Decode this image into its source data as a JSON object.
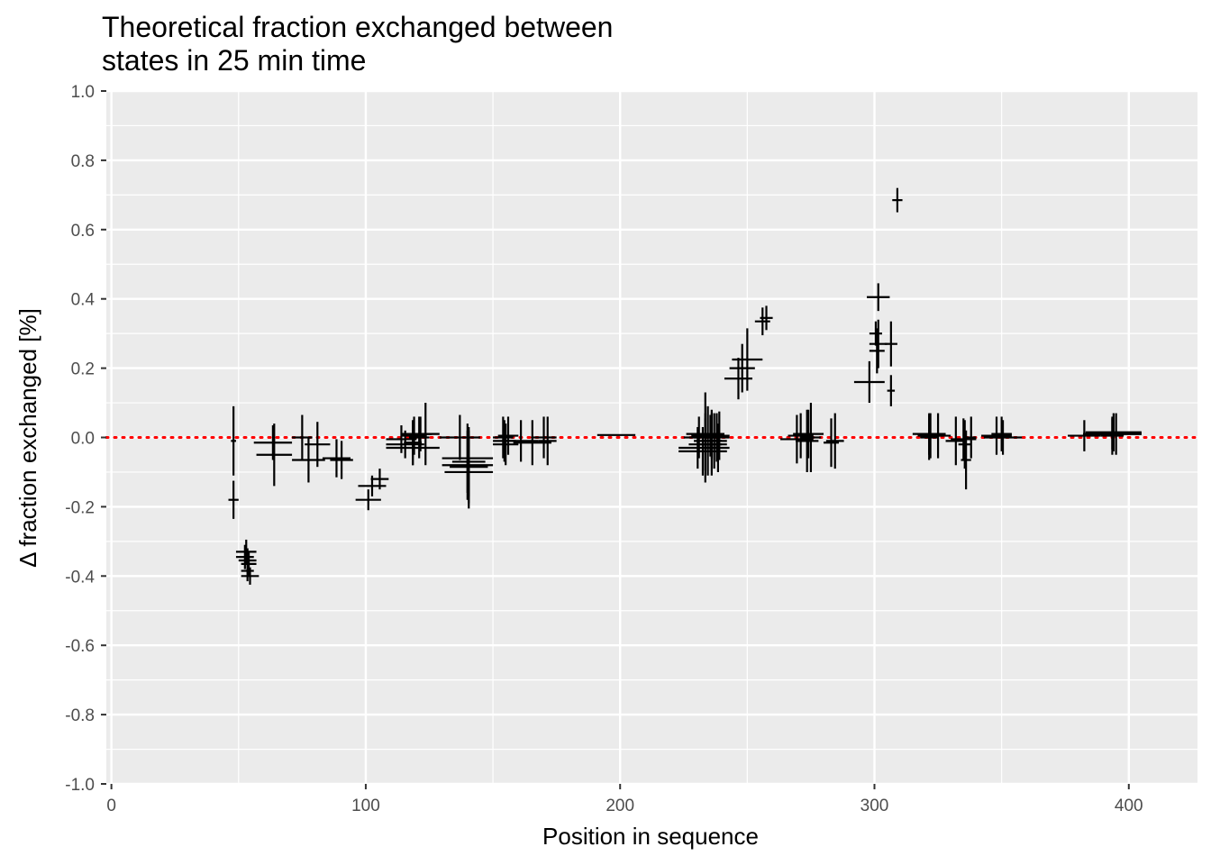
{
  "chart_data": {
    "type": "scatter",
    "title_lines": [
      "Theoretical fraction exchanged between",
      "states in 25 min time"
    ],
    "xlabel": "Position in sequence",
    "ylabel": "Δ fraction exchanged [%]",
    "xlim": [
      -2,
      427
    ],
    "ylim": [
      -1.0,
      1.0
    ],
    "x_ticks": [
      0,
      100,
      200,
      300,
      400
    ],
    "x_tick_labels": [
      "0",
      "100",
      "200",
      "300",
      "400"
    ],
    "y_ticks": [
      -1.0,
      -0.8,
      -0.6,
      -0.4,
      -0.2,
      0.0,
      0.2,
      0.4,
      0.6,
      0.8,
      1.0
    ],
    "y_tick_labels": [
      "-1.0",
      "-0.8",
      "-0.6",
      "-0.4",
      "-0.2",
      "0.0",
      "0.2",
      "0.4",
      "0.6",
      "0.8",
      "1.0"
    ],
    "grid": true,
    "colors": {
      "panel": "#ebebeb",
      "grid": "#ffffff",
      "mark": "#000000",
      "reference_line": "#ff0000"
    },
    "reference_line": {
      "y": 0.0,
      "style": "dotted"
    },
    "series": [
      {
        "mark": "crossbar",
        "points": [
          {
            "start": 47,
            "end": 49,
            "value": -0.01,
            "err": 0.1
          },
          {
            "start": 46,
            "end": 50,
            "value": -0.18,
            "err": 0.055
          },
          {
            "start": 49,
            "end": 57,
            "value": -0.33,
            "err": 0.035
          },
          {
            "start": 49,
            "end": 56,
            "value": -0.345,
            "err": 0.035
          },
          {
            "start": 50,
            "end": 57,
            "value": -0.355,
            "err": 0.035
          },
          {
            "start": 51,
            "end": 57,
            "value": -0.365,
            "err": 0.035
          },
          {
            "start": 51,
            "end": 56,
            "value": -0.385,
            "err": 0.03
          },
          {
            "start": 51,
            "end": 58,
            "value": -0.4,
            "err": 0.025
          },
          {
            "start": 56,
            "end": 71,
            "value": -0.015,
            "err": 0.05
          },
          {
            "start": 57,
            "end": 71,
            "value": -0.05,
            "err": 0.09
          },
          {
            "start": 71,
            "end": 79,
            "value": 0.0,
            "err": 0.065
          },
          {
            "start": 71,
            "end": 84,
            "value": -0.065,
            "err": 0.065
          },
          {
            "start": 76,
            "end": 86,
            "value": -0.02,
            "err": 0.065
          },
          {
            "start": 83,
            "end": 94,
            "value": -0.06,
            "err": 0.055
          },
          {
            "start": 86,
            "end": 95,
            "value": -0.065,
            "err": 0.055
          },
          {
            "start": 96,
            "end": 106,
            "value": -0.18,
            "err": 0.03
          },
          {
            "start": 97,
            "end": 108,
            "value": -0.14,
            "err": 0.03
          },
          {
            "start": 102,
            "end": 109,
            "value": -0.12,
            "err": 0.03
          },
          {
            "start": 108,
            "end": 120,
            "value": -0.005,
            "err": 0.04
          },
          {
            "start": 108,
            "end": 123,
            "value": -0.02,
            "err": 0.04
          },
          {
            "start": 108,
            "end": 129,
            "value": -0.03,
            "err": 0.05
          },
          {
            "start": 114,
            "end": 124,
            "value": 0.005,
            "err": 0.055
          },
          {
            "start": 114,
            "end": 129,
            "value": 0.01,
            "err": 0.05
          },
          {
            "start": 115,
            "end": 122,
            "value": -0.015,
            "err": 0.065
          },
          {
            "start": 117,
            "end": 125,
            "value": 0.0,
            "err": 0.06
          },
          {
            "start": 121,
            "end": 126,
            "value": 0.01,
            "err": 0.09
          },
          {
            "start": 129,
            "end": 145,
            "value": 0.0,
            "err": 0.065
          },
          {
            "start": 130,
            "end": 150,
            "value": -0.06,
            "err": 0.1
          },
          {
            "start": 130,
            "end": 150,
            "value": -0.08,
            "err": 0.1
          },
          {
            "start": 131,
            "end": 150,
            "value": -0.1,
            "err": 0.105
          },
          {
            "start": 133,
            "end": 148,
            "value": -0.085,
            "err": 0.105
          },
          {
            "start": 134,
            "end": 147,
            "value": -0.07,
            "err": 0.1
          },
          {
            "start": 150,
            "end": 158,
            "value": 0.0,
            "err": 0.06
          },
          {
            "start": 150,
            "end": 159,
            "value": -0.01,
            "err": 0.06
          },
          {
            "start": 150,
            "end": 160,
            "value": -0.02,
            "err": 0.06
          },
          {
            "start": 152,
            "end": 160,
            "value": 0.005,
            "err": 0.055
          },
          {
            "start": 154,
            "end": 168,
            "value": -0.01,
            "err": 0.06
          },
          {
            "start": 158,
            "end": 173,
            "value": -0.015,
            "err": 0.065
          },
          {
            "start": 165,
            "end": 175,
            "value": 0.0,
            "err": 0.06
          },
          {
            "start": 168,
            "end": 175,
            "value": -0.01,
            "err": 0.07
          },
          {
            "start": 191,
            "end": 206,
            "value": 0.007,
            "err": 0.0
          },
          {
            "start": 223,
            "end": 238,
            "value": -0.03,
            "err": 0.06
          },
          {
            "start": 223,
            "end": 242,
            "value": -0.04,
            "err": 0.07
          },
          {
            "start": 225,
            "end": 237,
            "value": 0.0,
            "err": 0.06
          },
          {
            "start": 226,
            "end": 241,
            "value": 0.01,
            "err": 0.06
          },
          {
            "start": 227,
            "end": 240,
            "value": -0.02,
            "err": 0.075
          },
          {
            "start": 228,
            "end": 243,
            "value": 0.005,
            "err": 0.06
          },
          {
            "start": 229,
            "end": 240,
            "value": -0.01,
            "err": 0.1
          },
          {
            "start": 229,
            "end": 238,
            "value": 0.0,
            "err": 0.13
          },
          {
            "start": 230,
            "end": 242,
            "value": -0.02,
            "err": 0.09
          },
          {
            "start": 231,
            "end": 241,
            "value": 0.01,
            "err": 0.07
          },
          {
            "start": 232,
            "end": 242,
            "value": -0.01,
            "err": 0.08
          },
          {
            "start": 233,
            "end": 243,
            "value": 0.0,
            "err": 0.07
          },
          {
            "start": 234,
            "end": 243,
            "value": -0.03,
            "err": 0.07
          },
          {
            "start": 235,
            "end": 243,
            "value": 0.005,
            "err": 0.07
          },
          {
            "start": 241,
            "end": 252,
            "value": 0.17,
            "err": 0.06
          },
          {
            "start": 243,
            "end": 253,
            "value": 0.2,
            "err": 0.07
          },
          {
            "start": 244,
            "end": 256,
            "value": 0.225,
            "err": 0.09
          },
          {
            "start": 253,
            "end": 259,
            "value": 0.335,
            "err": 0.04
          },
          {
            "start": 255,
            "end": 260,
            "value": 0.345,
            "err": 0.035
          },
          {
            "start": 263,
            "end": 276,
            "value": -0.005,
            "err": 0.07
          },
          {
            "start": 266,
            "end": 276,
            "value": 0.005,
            "err": 0.065
          },
          {
            "start": 268,
            "end": 280,
            "value": 0.01,
            "err": 0.07
          },
          {
            "start": 269,
            "end": 278,
            "value": -0.01,
            "err": 0.09
          },
          {
            "start": 271,
            "end": 279,
            "value": 0.0,
            "err": 0.1
          },
          {
            "start": 280,
            "end": 286,
            "value": -0.015,
            "err": 0.07
          },
          {
            "start": 281,
            "end": 288,
            "value": -0.01,
            "err": 0.08
          },
          {
            "start": 292,
            "end": 304,
            "value": 0.16,
            "err": 0.06
          },
          {
            "start": 298,
            "end": 304,
            "value": 0.25,
            "err": 0.065
          },
          {
            "start": 298,
            "end": 305,
            "value": 0.27,
            "err": 0.07
          },
          {
            "start": 298,
            "end": 303,
            "value": 0.3,
            "err": 0.035
          },
          {
            "start": 297,
            "end": 306,
            "value": 0.405,
            "err": 0.04
          },
          {
            "start": 304,
            "end": 309,
            "value": 0.27,
            "err": 0.065
          },
          {
            "start": 305,
            "end": 308,
            "value": 0.135,
            "err": 0.045
          },
          {
            "start": 307,
            "end": 311,
            "value": 0.685,
            "err": 0.035
          },
          {
            "start": 315,
            "end": 328,
            "value": 0.01,
            "err": 0.06
          },
          {
            "start": 317,
            "end": 327,
            "value": 0.005,
            "err": 0.065
          },
          {
            "start": 318,
            "end": 325,
            "value": 0.0,
            "err": 0.065
          },
          {
            "start": 320,
            "end": 330,
            "value": 0.005,
            "err": 0.065
          },
          {
            "start": 328,
            "end": 336,
            "value": -0.01,
            "err": 0.07
          },
          {
            "start": 330,
            "end": 340,
            "value": -0.005,
            "err": 0.06
          },
          {
            "start": 333,
            "end": 338,
            "value": -0.02,
            "err": 0.07
          },
          {
            "start": 334,
            "end": 338,
            "value": -0.065,
            "err": 0.085
          },
          {
            "start": 336,
            "end": 340,
            "value": 0.0,
            "err": 0.06
          },
          {
            "start": 342,
            "end": 354,
            "value": 0.005,
            "err": 0.055
          },
          {
            "start": 343,
            "end": 358,
            "value": 0.0,
            "err": 0.05
          },
          {
            "start": 346,
            "end": 354,
            "value": 0.01,
            "err": 0.05
          },
          {
            "start": 376,
            "end": 389,
            "value": 0.005,
            "err": 0.045
          },
          {
            "start": 382,
            "end": 405,
            "value": 0.01,
            "err": 0.045
          },
          {
            "start": 383,
            "end": 405,
            "value": 0.015,
            "err": 0.055
          },
          {
            "start": 385,
            "end": 405,
            "value": 0.01,
            "err": 0.06
          },
          {
            "start": 389,
            "end": 398,
            "value": 0.005,
            "err": 0.055
          }
        ]
      }
    ]
  }
}
